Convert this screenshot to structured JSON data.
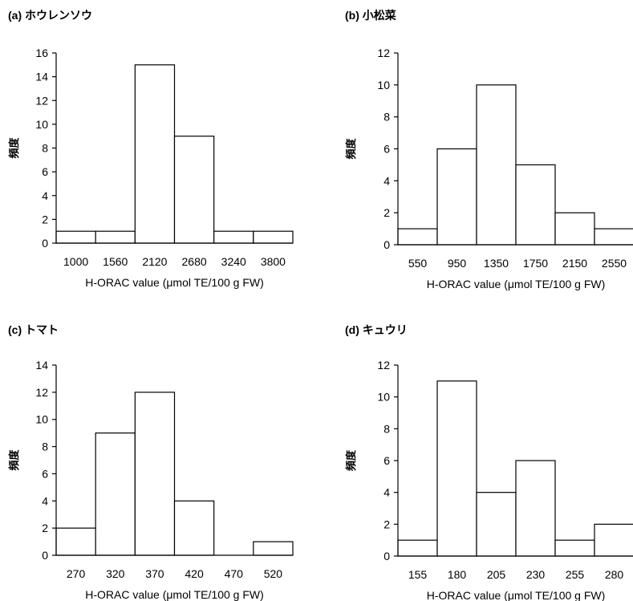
{
  "chart_data": [
    {
      "type": "bar",
      "title": "(a) ホウレンソウ",
      "ylabel": "頻度",
      "xlabel": "H-ORAC value (μmol TE/100 g FW)",
      "categories": [
        "1000",
        "1560",
        "2120",
        "2680",
        "3240",
        "3800"
      ],
      "values": [
        1,
        1,
        15,
        9,
        1,
        1
      ],
      "ylim": [
        0,
        16
      ],
      "yticks": [
        "0",
        "2",
        "4",
        "6",
        "8",
        "10",
        "12",
        "14",
        "16"
      ]
    },
    {
      "type": "bar",
      "title": "(b) 小松菜",
      "ylabel": "頻度",
      "xlabel": "H-ORAC value (μmol TE/100 g FW)",
      "categories": [
        "550",
        "950",
        "1350",
        "1750",
        "2150",
        "2550"
      ],
      "values": [
        1,
        6,
        10,
        5,
        2,
        1
      ],
      "ylim": [
        0,
        12
      ],
      "yticks": [
        "0",
        "2",
        "4",
        "6",
        "8",
        "10",
        "12"
      ]
    },
    {
      "type": "bar",
      "title": "(c) トマト",
      "ylabel": "頻度",
      "xlabel": "H-ORAC value (μmol TE/100 g FW)",
      "categories": [
        "270",
        "320",
        "370",
        "420",
        "470",
        "520"
      ],
      "values": [
        2,
        9,
        12,
        4,
        0,
        1
      ],
      "ylim": [
        0,
        14
      ],
      "yticks": [
        "0",
        "2",
        "4",
        "6",
        "8",
        "10",
        "12",
        "14"
      ]
    },
    {
      "type": "bar",
      "title": "(d) キュウリ",
      "ylabel": "頻度",
      "xlabel": "H-ORAC value (μmol TE/100 g FW)",
      "categories": [
        "155",
        "180",
        "205",
        "230",
        "255",
        "280"
      ],
      "values": [
        1,
        11,
        4,
        6,
        1,
        2
      ],
      "ylim": [
        0,
        12
      ],
      "yticks": [
        "0",
        "2",
        "4",
        "6",
        "8",
        "10",
        "12"
      ]
    }
  ]
}
